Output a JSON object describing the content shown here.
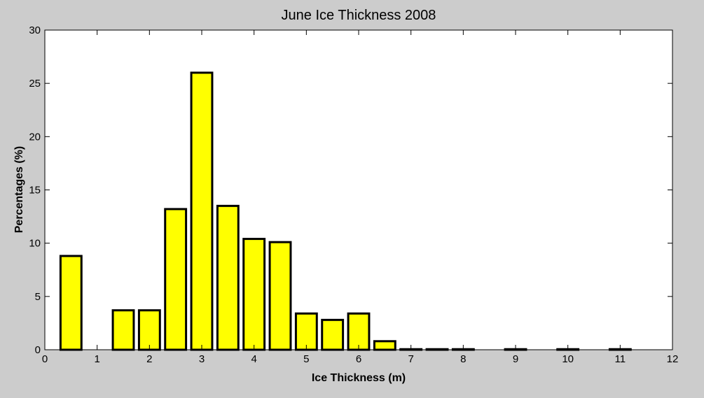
{
  "chart_data": {
    "type": "bar",
    "title": "June Ice Thickness 2008",
    "xlabel": "Ice Thickness (m)",
    "ylabel": "Percentages (%)",
    "xlim": [
      0,
      12
    ],
    "ylim": [
      0,
      30
    ],
    "xticks": [
      0,
      1,
      2,
      3,
      4,
      5,
      6,
      7,
      8,
      9,
      10,
      11,
      12
    ],
    "yticks": [
      0,
      5,
      10,
      15,
      20,
      25,
      30
    ],
    "bar_width": 0.4,
    "grid": false,
    "bins": [
      {
        "x": 0.5,
        "value": 8.8
      },
      {
        "x": 1.0,
        "value": 0
      },
      {
        "x": 1.5,
        "value": 3.7
      },
      {
        "x": 2.0,
        "value": 3.7
      },
      {
        "x": 2.5,
        "value": 13.2
      },
      {
        "x": 3.0,
        "value": 26.0
      },
      {
        "x": 3.5,
        "value": 13.5
      },
      {
        "x": 4.0,
        "value": 10.4
      },
      {
        "x": 4.5,
        "value": 10.1
      },
      {
        "x": 5.0,
        "value": 3.4
      },
      {
        "x": 5.5,
        "value": 2.8
      },
      {
        "x": 6.0,
        "value": 3.4
      },
      {
        "x": 6.5,
        "value": 0.8
      },
      {
        "x": 7.0,
        "value": 0.05
      },
      {
        "x": 7.5,
        "value": 0.05
      },
      {
        "x": 8.0,
        "value": 0.05
      },
      {
        "x": 9.0,
        "value": 0.05
      },
      {
        "x": 10.0,
        "value": 0.05
      },
      {
        "x": 11.0,
        "value": 0.05
      }
    ],
    "colors": {
      "bar_fill": "#ffff00",
      "bar_stroke": "#000000",
      "plot_background": "#ffffff",
      "figure_background": "#cccccc"
    }
  }
}
